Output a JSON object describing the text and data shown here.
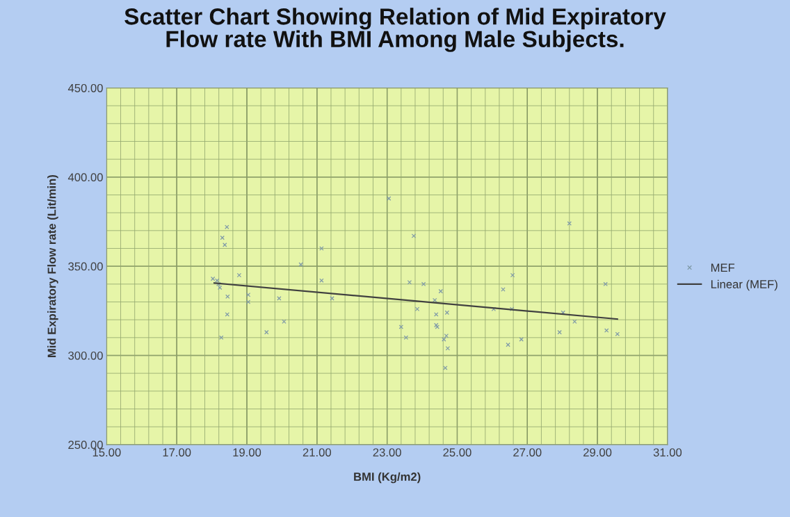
{
  "chart_data": {
    "type": "scatter",
    "title": "Scatter Chart Showing Relation of Mid Expiratory\nFlow rate With BMI Among Male Subjects.",
    "xlabel": "BMI (Kg/m2)",
    "ylabel": "Mid Expiratory Flow rate (Lit/min)",
    "series": [
      {
        "name": "MEF",
        "color": "#7f9aa8",
        "marker": "cross",
        "x": [
          18.3,
          18.37,
          18.43,
          18.03,
          18.15,
          18.19,
          18.23,
          18.45,
          18.78,
          19.04,
          19.04,
          19.92,
          20.06,
          19.56,
          18.44,
          18.27,
          23.76,
          21.13,
          20.54,
          21.13,
          21.43,
          23.64,
          24.04,
          24.53,
          24.36,
          23.86,
          24.4,
          24.71,
          23.4,
          23.54,
          24.4,
          24.43,
          24.69,
          24.62,
          24.73,
          24.66,
          23.05,
          28.2,
          26.58,
          26.31,
          29.23,
          28.02,
          28.35,
          27.92,
          29.26,
          29.57,
          26.83,
          26.45,
          26.04,
          26.56
        ],
        "values": [
          366,
          362,
          372,
          343,
          342,
          340,
          338,
          333,
          345,
          334,
          330,
          332,
          319,
          313,
          323,
          310,
          367,
          360,
          351,
          342,
          332,
          341,
          340,
          336,
          331,
          326,
          323,
          324,
          316,
          310,
          317,
          316,
          311,
          309,
          304,
          293,
          388,
          374,
          345,
          337,
          340,
          324,
          319,
          313,
          314,
          312,
          309,
          306,
          326,
          326
        ]
      },
      {
        "name": "Linear (MEF)",
        "type": "line",
        "color": "#404040",
        "marker": "none",
        "line_style": "solid",
        "x": [
          18.07,
          29.57
        ],
        "values": [
          340.6,
          320.4
        ]
      }
    ],
    "xlim": [
      15,
      31
    ],
    "xticks": [
      {
        "value": 15,
        "label": "15.00"
      },
      {
        "value": 15.4,
        "label": null
      },
      {
        "value": 15.8,
        "label": null
      },
      {
        "value": 16.2,
        "label": null
      },
      {
        "value": 16.6,
        "label": null
      },
      {
        "value": 17,
        "label": "17.00"
      },
      {
        "value": 17.4,
        "label": null
      },
      {
        "value": 17.8,
        "label": null
      },
      {
        "value": 18.2,
        "label": null
      },
      {
        "value": 18.6,
        "label": null
      },
      {
        "value": 19,
        "label": "19.00"
      },
      {
        "value": 19.4,
        "label": null
      },
      {
        "value": 19.8,
        "label": null
      },
      {
        "value": 20.2,
        "label": null
      },
      {
        "value": 20.6,
        "label": null
      },
      {
        "value": 21,
        "label": "21.00"
      },
      {
        "value": 21.4,
        "label": null
      },
      {
        "value": 21.8,
        "label": null
      },
      {
        "value": 22.2,
        "label": null
      },
      {
        "value": 22.6,
        "label": null
      },
      {
        "value": 23,
        "label": "23.00"
      },
      {
        "value": 23.4,
        "label": null
      },
      {
        "value": 23.8,
        "label": null
      },
      {
        "value": 24.2,
        "label": null
      },
      {
        "value": 24.6,
        "label": null
      },
      {
        "value": 25,
        "label": "25.00"
      },
      {
        "value": 25.4,
        "label": null
      },
      {
        "value": 25.8,
        "label": null
      },
      {
        "value": 26.2,
        "label": null
      },
      {
        "value": 26.6,
        "label": null
      },
      {
        "value": 27,
        "label": "27.00"
      },
      {
        "value": 27.4,
        "label": null
      },
      {
        "value": 27.8,
        "label": null
      },
      {
        "value": 28.2,
        "label": null
      },
      {
        "value": 28.6,
        "label": null
      },
      {
        "value": 29,
        "label": "29.00"
      },
      {
        "value": 29.4,
        "label": null
      },
      {
        "value": 29.8,
        "label": null
      },
      {
        "value": 30.2,
        "label": null
      },
      {
        "value": 30.6,
        "label": null
      },
      {
        "value": 31,
        "label": "31.00"
      }
    ],
    "ylim": [
      250,
      450
    ],
    "yticks": [
      {
        "value": 250,
        "label": "250.00"
      },
      {
        "value": 260,
        "label": null
      },
      {
        "value": 270,
        "label": null
      },
      {
        "value": 280,
        "label": null
      },
      {
        "value": 290,
        "label": null
      },
      {
        "value": 300,
        "label": "300.00"
      },
      {
        "value": 310,
        "label": null
      },
      {
        "value": 320,
        "label": null
      },
      {
        "value": 330,
        "label": null
      },
      {
        "value": 340,
        "label": null
      },
      {
        "value": 350,
        "label": "350.00"
      },
      {
        "value": 360,
        "label": null
      },
      {
        "value": 370,
        "label": null
      },
      {
        "value": 380,
        "label": null
      },
      {
        "value": 390,
        "label": null
      },
      {
        "value": 400,
        "label": "400.00"
      },
      {
        "value": 410,
        "label": null
      },
      {
        "value": 420,
        "label": null
      },
      {
        "value": 430,
        "label": null
      },
      {
        "value": 440,
        "label": null
      },
      {
        "value": 450,
        "label": "450.00"
      }
    ],
    "grid": true,
    "legend": "right"
  }
}
